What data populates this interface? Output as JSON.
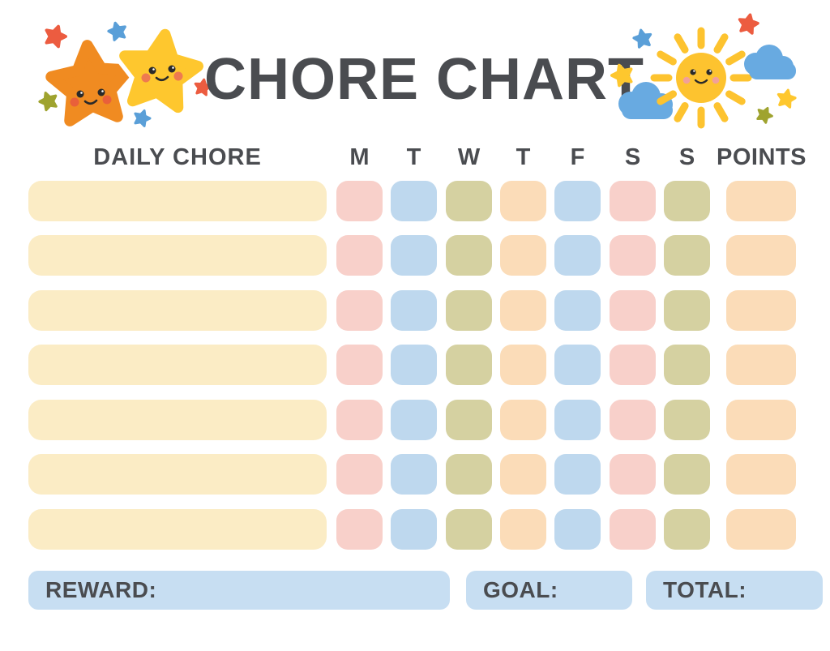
{
  "title": "CHORE CHART",
  "colors": {
    "text": "#4a4c50",
    "cream": "#fbecc5",
    "pink": "#f8d0ca",
    "blue": "#bed8ee",
    "olive": "#d5d1a1",
    "peach": "#fbdcb8",
    "lightblue": "#c7def2"
  },
  "decorations": {
    "left": "stars-decoration",
    "right": "sun-clouds-decoration",
    "star_orange": "#f08b21",
    "star_yellow": "#fec72e",
    "star_red": "#ec5c40",
    "star_blue": "#5a9fd8",
    "star_olive": "#9fa32f",
    "sun_yellow": "#fdc32f",
    "cloud_blue": "#68aae1",
    "cheek_red": "#e9603a",
    "cheek_orange": "#ee7a50",
    "cheek_pink": "#f2a09a",
    "face_dark": "#2a2a2a"
  },
  "table": {
    "chore_header": "DAILY CHORE",
    "day_headers": [
      "M",
      "T",
      "W",
      "T",
      "F",
      "S",
      "S"
    ],
    "points_header": "POINTS",
    "day_color_pattern": [
      "pink",
      "blue",
      "olive",
      "peach",
      "blue",
      "pink",
      "olive"
    ],
    "points_color": "peach",
    "rows": [
      {
        "chore": "",
        "points": ""
      },
      {
        "chore": "",
        "points": ""
      },
      {
        "chore": "",
        "points": ""
      },
      {
        "chore": "",
        "points": ""
      },
      {
        "chore": "",
        "points": ""
      },
      {
        "chore": "",
        "points": ""
      },
      {
        "chore": "",
        "points": ""
      }
    ]
  },
  "footer": {
    "reward_label": "REWARD:",
    "reward_value": "",
    "goal_label": "GOAL:",
    "goal_value": "",
    "total_label": "TOTAL:",
    "total_value": ""
  }
}
